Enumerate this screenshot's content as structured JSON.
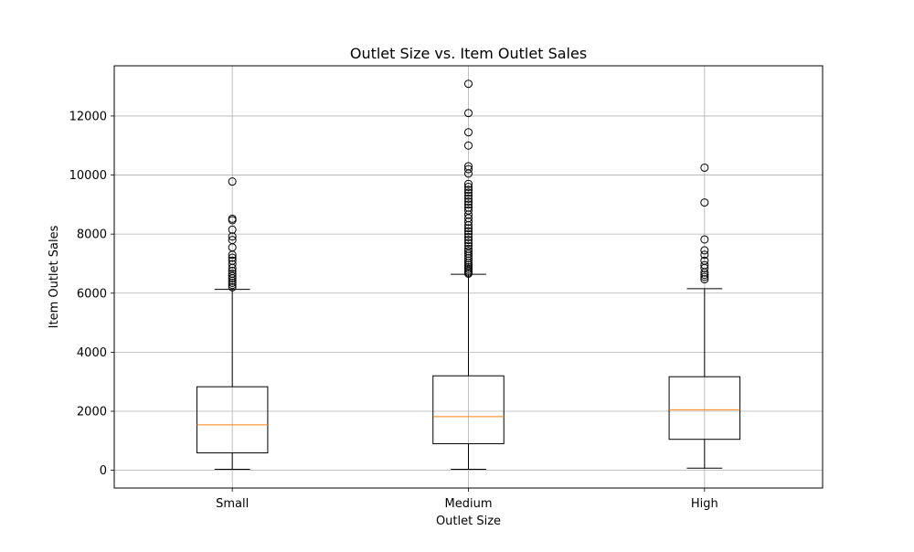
{
  "chart_data": {
    "type": "box",
    "title": "Outlet Size vs. Item Outlet Sales",
    "xlabel": "Outlet Size",
    "ylabel": "Item Outlet Sales",
    "categories": [
      "Small",
      "Medium",
      "High"
    ],
    "ylim": [
      -600,
      13700
    ],
    "yticks": [
      0,
      2000,
      4000,
      6000,
      8000,
      10000,
      12000
    ],
    "ytick_labels": [
      "0",
      "2000",
      "4000",
      "6000",
      "8000",
      "10000",
      "12000"
    ],
    "grid": true,
    "colors": {
      "box": "#000000",
      "median": "#ff7f0e",
      "grid": "#b0b0b0"
    },
    "boxes": [
      {
        "category": "Small",
        "whisker_low": 33,
        "q1": 590,
        "median": 1540,
        "q3": 2830,
        "whisker_high": 6130,
        "outliers": [
          6200,
          6280,
          6350,
          6420,
          6500,
          6580,
          6660,
          6750,
          6850,
          6980,
          7100,
          7200,
          7300,
          7550,
          7800,
          7920,
          8150,
          8470,
          8520,
          9780
        ]
      },
      {
        "category": "Medium",
        "whisker_low": 34,
        "q1": 900,
        "median": 1820,
        "q3": 3200,
        "whisker_high": 6640,
        "outliers": [
          6660,
          6700,
          6760,
          6820,
          6880,
          6950,
          7020,
          7100,
          7180,
          7260,
          7340,
          7420,
          7500,
          7600,
          7700,
          7800,
          7900,
          8000,
          8100,
          8200,
          8300,
          8420,
          8540,
          8660,
          8800,
          8900,
          9000,
          9100,
          9200,
          9300,
          9400,
          9500,
          9600,
          9700,
          10050,
          10200,
          10300,
          11000,
          11450,
          12100,
          13090
        ]
      },
      {
        "category": "High",
        "whisker_low": 73,
        "q1": 1050,
        "median": 2050,
        "q3": 3170,
        "whisker_high": 6150,
        "outliers": [
          6470,
          6550,
          6620,
          6700,
          6850,
          6950,
          7100,
          7300,
          7450,
          7820,
          9070,
          10250
        ]
      }
    ]
  }
}
